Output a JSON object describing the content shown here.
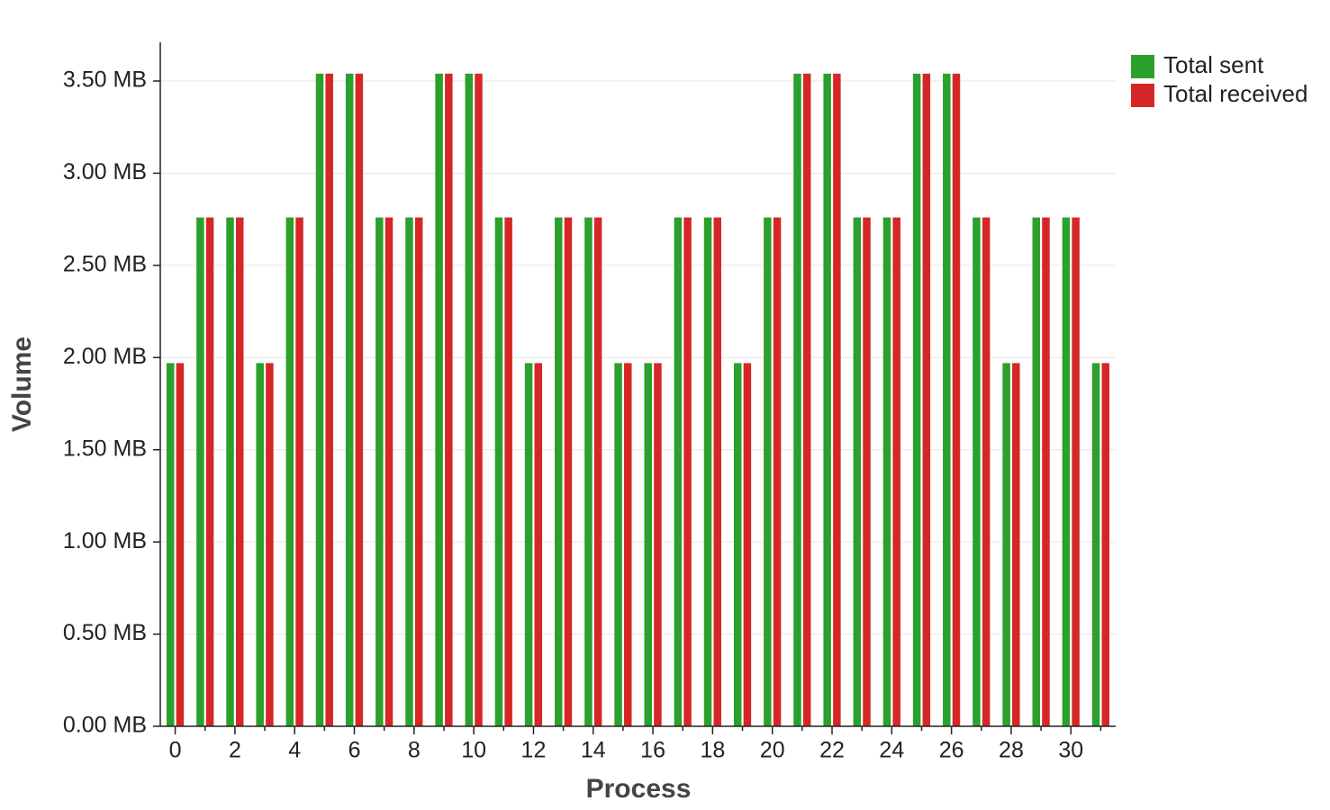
{
  "chart_data": {
    "type": "bar",
    "x_label": "Process",
    "y_label": "Volume",
    "categories": [
      "0",
      null,
      "2",
      null,
      "4",
      null,
      "6",
      null,
      "8",
      null,
      "10",
      null,
      "12",
      null,
      "14",
      null,
      "16",
      null,
      "18",
      null,
      "20",
      null,
      "22",
      null,
      "24",
      null,
      "26",
      null,
      "28",
      null,
      "30",
      null
    ],
    "series": [
      {
        "name": "Total sent",
        "color": "#2ca02c",
        "values": [
          1.97,
          2.76,
          2.76,
          1.97,
          2.76,
          3.54,
          3.54,
          2.76,
          2.76,
          3.54,
          3.54,
          2.76,
          1.97,
          2.76,
          2.76,
          1.97,
          1.97,
          2.76,
          2.76,
          1.97,
          2.76,
          3.54,
          3.54,
          2.76,
          2.76,
          3.54,
          3.54,
          2.76,
          1.97,
          2.76,
          2.76,
          1.97
        ]
      },
      {
        "name": "Total received",
        "color": "#d62728",
        "values": [
          1.97,
          2.76,
          2.76,
          1.97,
          2.76,
          3.54,
          3.54,
          2.76,
          2.76,
          3.54,
          3.54,
          2.76,
          1.97,
          2.76,
          2.76,
          1.97,
          1.97,
          2.76,
          2.76,
          1.97,
          2.76,
          3.54,
          3.54,
          2.76,
          2.76,
          3.54,
          3.54,
          2.76,
          1.97,
          2.76,
          2.76,
          1.97
        ]
      }
    ],
    "ylim": [
      0,
      3.71
    ],
    "yticks": [
      {
        "value": 0,
        "label": "0.00 MB"
      },
      {
        "value": 0.5,
        "label": "0.50 MB"
      },
      {
        "value": 1,
        "label": "1.00 MB"
      },
      {
        "value": 1.5,
        "label": "1.50 MB"
      },
      {
        "value": 2,
        "label": "2.00 MB"
      },
      {
        "value": 2.5,
        "label": "2.50 MB"
      },
      {
        "value": 3,
        "label": "3.00 MB"
      },
      {
        "value": 3.5,
        "label": "3.50 MB"
      }
    ],
    "grid": true,
    "legend": "top-right"
  }
}
